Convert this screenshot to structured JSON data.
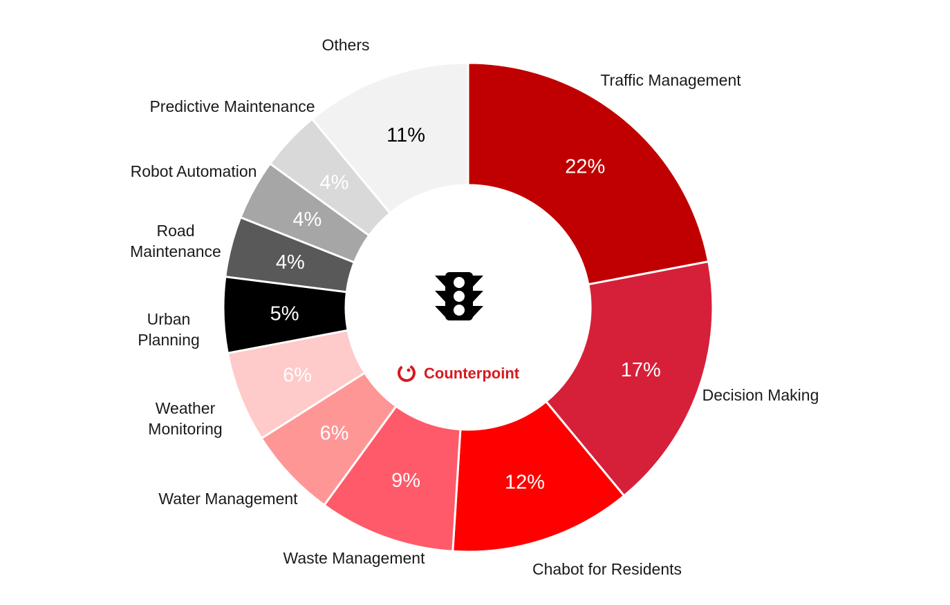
{
  "chart_data": {
    "type": "pie",
    "variant": "donut",
    "categories": [
      "Traffic Management",
      "Decision Making",
      "Chabot for Residents",
      "Waste Management",
      "Water Management",
      "Weather Monitoring",
      "Urban Planning",
      "Road Maintenance",
      "Robot Automation",
      "Predictive Maintenance",
      "Others"
    ],
    "values": [
      22,
      17,
      12,
      9,
      6,
      6,
      5,
      4,
      4,
      4,
      11
    ],
    "value_labels": [
      "22%",
      "17%",
      "12%",
      "9%",
      "6%",
      "6%",
      "5%",
      "4%",
      "4%",
      "4%",
      "11%"
    ],
    "colors": [
      "#c00000",
      "#d6203a",
      "#ff0000",
      "#ff5a69",
      "#ff9696",
      "#ffcaca",
      "#000000",
      "#595959",
      "#a6a6a6",
      "#d9d9d9",
      "#f2f2f2"
    ],
    "label_colors": [
      "#ffffff",
      "#ffffff",
      "#ffffff",
      "#ffffff",
      "#ffffff",
      "#ffffff",
      "#ffffff",
      "#ffffff",
      "#ffffff",
      "#ffffff",
      "#000000"
    ],
    "legend": "none"
  },
  "center": {
    "icon": "traffic-light-icon",
    "brand_name": "Counterpoint",
    "brand_color": "#d71920"
  }
}
